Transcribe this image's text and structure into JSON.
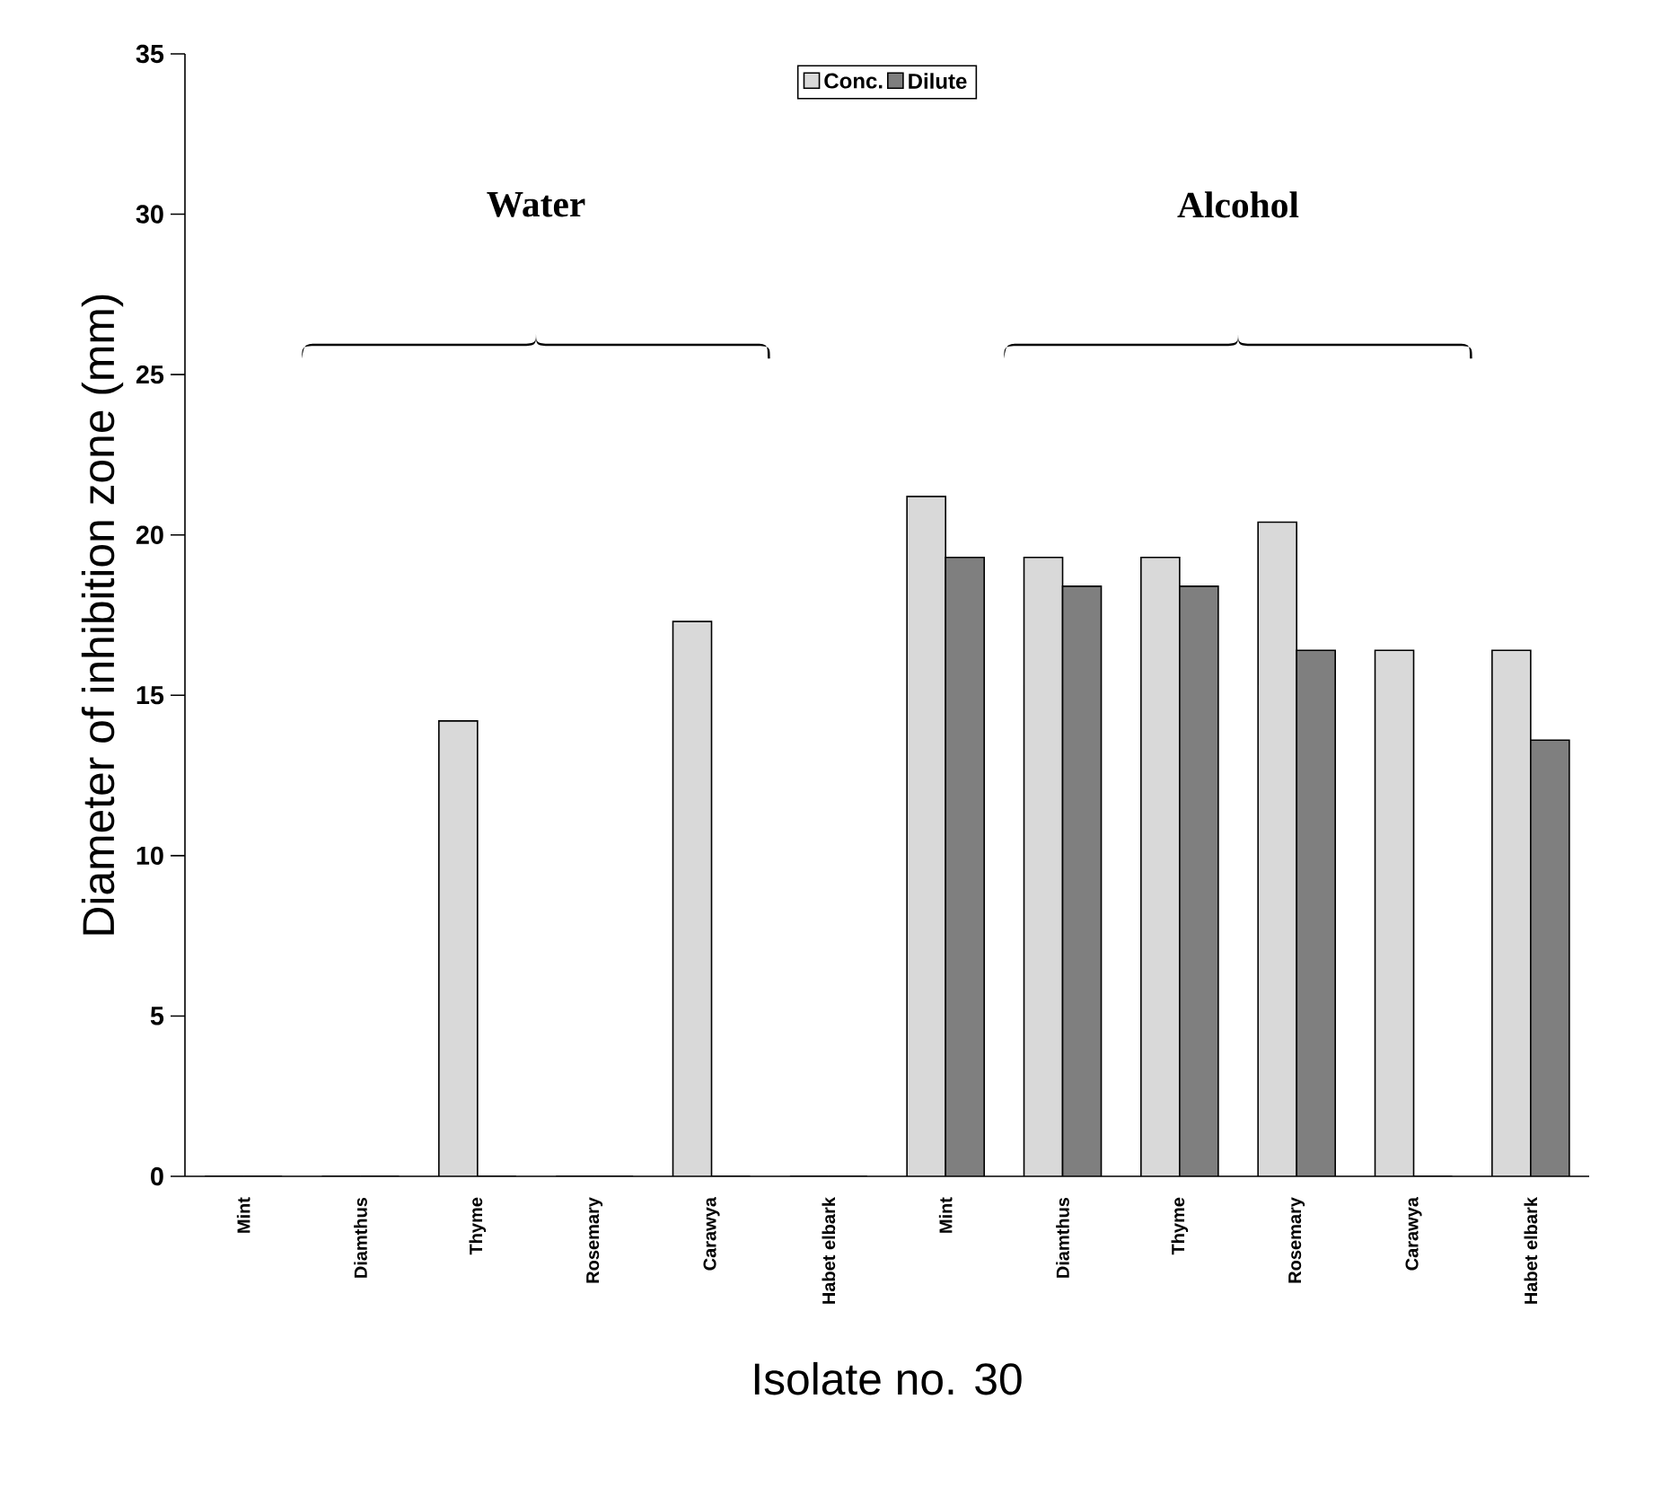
{
  "chart_data": {
    "type": "bar",
    "xlabel": "Isolate no. 30",
    "ylabel": "Diameter of inhibition zone (mm)",
    "categories": [
      "Mint",
      "Diamthus",
      "Thyme",
      "Rosemary",
      "Carawya",
      "Habet elbark",
      "Mint",
      "Diamthus",
      "Thyme",
      "Rosemary",
      "Carawya",
      "Habet elbark"
    ],
    "series": [
      {
        "name": "Conc.",
        "color": "#d9d9d9",
        "values": [
          0,
          0,
          14.2,
          0,
          17.3,
          0,
          21.2,
          19.3,
          19.3,
          20.4,
          16.4,
          16.4
        ]
      },
      {
        "name": "Dilute",
        "color": "#7f7f7f",
        "values": [
          0,
          0,
          0,
          0,
          0,
          0,
          19.3,
          18.4,
          18.4,
          16.4,
          0,
          13.6
        ]
      }
    ],
    "annotations": [
      "Water",
      "Alcohol"
    ],
    "ylim": [
      0,
      35
    ],
    "yticks": [
      0,
      5,
      10,
      15,
      20,
      25,
      30,
      35
    ],
    "legend": "top",
    "grid": false
  }
}
